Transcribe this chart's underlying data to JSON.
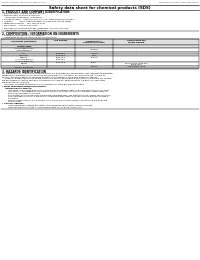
{
  "bg_color": "#ffffff",
  "header_left": "Product Name: Lithium Ion Battery Cell",
  "header_right_line1": "Document Control: SDS-048-00010",
  "header_right_line2": "Established / Revision: Dec.7.2010",
  "title": "Safety data sheet for chemical products (SDS)",
  "section1_title": "1. PRODUCT AND COMPANY IDENTIFICATION",
  "section1_lines": [
    "• Product name: Lithium Ion Battery Cell",
    "• Product code: Cylindrical type cell",
    "     IXR18650J, IXR18650L, IXR18650A",
    "• Company name:   Sanyo Electric Co., Ltd., Mobile Energy Company",
    "• Address:          2001  Kamimunakan, Sumoto-City, Hyogo, Japan",
    "• Telephone number:   +81-799-26-4111",
    "• Fax number:  +81-799-26-4120",
    "• Emergency telephone number (Weekday): +81-799-26-3662",
    "     (Night and holiday): +81-799-26-4120"
  ],
  "section2_title": "2. COMPOSITION / INFORMATION ON INGREDIENTS",
  "section2_subtitle": "• Substance or preparation: Preparation",
  "section2_sub2": "• Information about the chemical nature of product:",
  "table_headers": [
    "Component (substance)",
    "CAS number",
    "Concentration /\nConcentration range",
    "Classification and\nhazard labeling"
  ],
  "table_col_labels": [
    "Several name"
  ],
  "table_rows": [
    [
      "Lithium cobalt oxide\n(LiMnxCoyNizO2)",
      "-",
      "(30-60%)",
      "-"
    ],
    [
      "Iron",
      "7439-89-6",
      "15-25%",
      "-"
    ],
    [
      "Aluminum",
      "7429-90-5",
      "2-6%",
      "-"
    ],
    [
      "Graphite\n(Include graphite-1\n(Artificial graphite))",
      "7782-42-5\n7782-44-0",
      "10-25%",
      "-"
    ],
    [
      "Copper",
      "7440-50-8",
      "5-15%",
      "Sensitization of the skin\ngroup No.2"
    ],
    [
      "Organic electrolyte",
      "-",
      "10-20%",
      "Inflammable liquid"
    ]
  ],
  "section3_title": "3. HAZARDS IDENTIFICATION",
  "section3_para1": [
    "For the battery cell, chemical materials are stored in a hermetically sealed metal case, designed to withstand",
    "temperature and pressures encountered during normal use. As a result, during normal use, there is no",
    "physical danger of ignition or explosion and there is no danger of hazardous materials leakage.",
    "    However, if exposed to a fire, added mechanical shocks, decomposed, vented electric without any release,",
    "the gas release cannot be operated. The battery cell case will be breached of fire-particles, hazardous",
    "materials may be released.",
    "    Moreover, if heated strongly by the surrounding fire, some gas may be emitted."
  ],
  "section3_hazards_title": "• Most important hazard and effects:",
  "section3_human": "Human health effects:",
  "section3_human_lines": [
    "     Inhalation: The release of the electrolyte has an anesthesia action and stimulates a respiratory tract.",
    "     Skin contact: The release of the electrolyte stimulates a skin. The electrolyte skin contact causes a",
    "     sore and stimulation on the skin.",
    "     Eye contact: The release of the electrolyte stimulates eyes. The electrolyte eye contact causes a sore",
    "     and stimulation on the eye. Especially, a substance that causes a strong inflammation of the eyes is",
    "     produced.",
    "     Environmental effects: Since a battery cell remains in the environment, do not throw out it into the",
    "     environment."
  ],
  "section3_specific": "• Specific hazards:",
  "section3_specific_lines": [
    "     If the electrolyte contacts with water, it will generate detrimental hydrogen fluoride.",
    "     Since the used electrolyte is inflammable liquid, do not bring close to fire."
  ]
}
